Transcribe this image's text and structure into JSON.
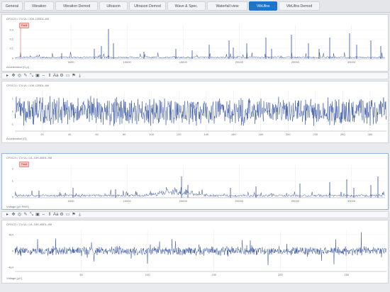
{
  "tabs": [
    {
      "label": "General"
    },
    {
      "label": "Vibration"
    },
    {
      "label": "Vibration Demod"
    },
    {
      "label": "Ultrason"
    },
    {
      "label": "Ultrason Demod"
    },
    {
      "label": "Wave & Spec."
    },
    {
      "label": "Waterfall view"
    },
    {
      "label": "VibUltra"
    },
    {
      "label": "VibUltra Demod"
    }
  ],
  "active_tab": "VibUltra",
  "panels": [
    {
      "id": "p1",
      "path": "CF0121 / CV-VL / 10K-12BDL-4M",
      "badge": "Fault",
      "ylabel": "Acceleration [G,p]",
      "y_ticks": [
        "0.3",
        "0.2",
        "0.1",
        "0"
      ],
      "x_ticks": [
        "5000",
        "10000",
        "15000",
        "20000",
        "25000",
        "30000"
      ]
    },
    {
      "id": "p2",
      "path": "CF0121 / CV-VL / 10K-12BDL-4M",
      "ylabel": "Acceleration [G]",
      "y_ticks": [
        "1",
        "0",
        "-1"
      ],
      "x_ticks": [
        "20",
        "40",
        "60",
        "80",
        "100",
        "120",
        "140",
        "160",
        "180",
        "200",
        "220",
        "240",
        "260"
      ]
    },
    {
      "id": "p3",
      "path": "CF0121 / CV-VL / UL-10K-4BDL-4M",
      "badge": "Fault",
      "ylabel": "Voltage [μV RMS]",
      "y_ticks": [
        "2",
        "1",
        "0"
      ],
      "x_ticks": [
        "5000",
        "10000",
        "15000",
        "20000",
        "25000",
        "30000"
      ]
    },
    {
      "id": "p4",
      "path": "CF0121 / CV-VL / UL-10K-4BDL-4M",
      "ylabel": "Voltage [μV]",
      "y_ticks": [
        "4e4",
        "0",
        "-4e4"
      ],
      "x_ticks": [
        "50",
        "100",
        "150",
        "200",
        "250"
      ]
    }
  ],
  "toolbar": {
    "icons": [
      "play-icon",
      "pan-icon",
      "zoom-icon",
      "edit-icon",
      "cursor-icon",
      "box-zoom-icon",
      "fit-x-icon",
      "fit-y-icon",
      "text-size-icon",
      "settings-icon",
      "marker-icon",
      "flag-icon",
      "download-icon"
    ],
    "glyphs": [
      "▸",
      "✥",
      "◎",
      "✎",
      "⤡",
      "▣",
      "⇔",
      "⇕",
      "Aa",
      "⚙",
      "▭",
      "⚑",
      "⤓"
    ]
  },
  "colors": {
    "signal": "#2f4d9e",
    "tab_active": "#1f73c8",
    "fault_text": "#b3261e",
    "fault_bg": "#f6c9c4"
  }
}
